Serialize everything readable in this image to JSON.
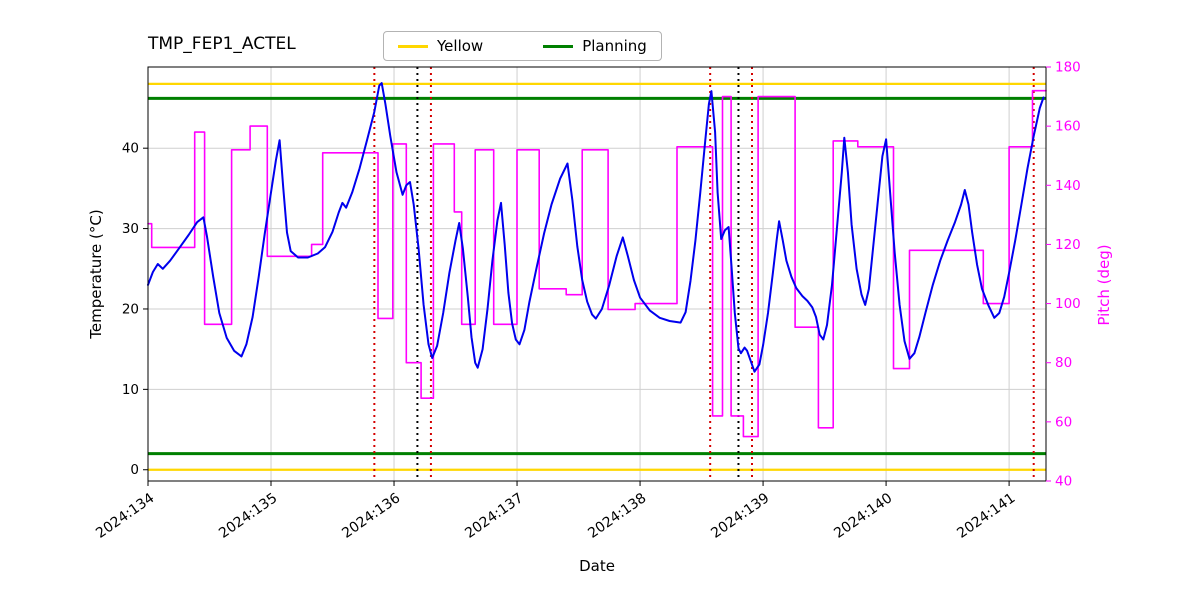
{
  "chart_data": {
    "type": "line",
    "title": "TMP_FEP1_ACTEL",
    "xlabel": "Date",
    "ylabel_left": "Temperature (°C)",
    "ylabel_right": "Pitch (deg)",
    "xlim": [
      134.0,
      141.3
    ],
    "ylim_left": [
      -1.4,
      50.1
    ],
    "ylim_right": [
      40,
      180
    ],
    "grid": true,
    "x_tick_values": [
      134,
      135,
      136,
      137,
      138,
      139,
      140,
      141
    ],
    "x_tick_labels": [
      "2024:134",
      "2024:135",
      "2024:136",
      "2024:137",
      "2024:138",
      "2024:139",
      "2024:140",
      "2024:141"
    ],
    "y_left_ticks": [
      0,
      10,
      20,
      30,
      40
    ],
    "y_right_ticks": [
      40,
      60,
      80,
      100,
      120,
      140,
      160,
      180
    ],
    "legend": {
      "position": "upper-center-outside",
      "entries": [
        {
          "label": "Yellow",
          "color": "#ffd700"
        },
        {
          "label": "Planning",
          "color": "#008000"
        }
      ]
    },
    "colors": {
      "temperature": "#0000ee",
      "pitch": "#ff00ff",
      "yellow_limit": "#ffd700",
      "planning_limit": "#008000",
      "red_event": "#d40000",
      "black_event": "#000000",
      "grid": "#cfcfcf"
    },
    "limit_lines": {
      "yellow": [
        48.0,
        0.0
      ],
      "planning": [
        46.2,
        2.0
      ]
    },
    "event_lines": {
      "red_dotted_x": [
        135.84,
        136.3,
        138.57,
        138.91,
        141.2
      ],
      "black_dotted_x": [
        136.19,
        138.8
      ]
    },
    "series": [
      {
        "name": "Pitch",
        "axis": "right",
        "color": "#ff00ff",
        "style": "step-post",
        "width": 1.6,
        "points": [
          [
            134.0,
            127
          ],
          [
            134.03,
            119
          ],
          [
            134.38,
            158
          ],
          [
            134.46,
            93
          ],
          [
            134.68,
            152
          ],
          [
            134.83,
            160
          ],
          [
            134.97,
            116
          ],
          [
            135.33,
            120
          ],
          [
            135.42,
            151
          ],
          [
            135.87,
            95
          ],
          [
            135.99,
            154
          ],
          [
            136.1,
            80
          ],
          [
            136.22,
            68
          ],
          [
            136.32,
            154
          ],
          [
            136.49,
            131
          ],
          [
            136.55,
            93
          ],
          [
            136.66,
            152
          ],
          [
            136.81,
            93
          ],
          [
            137.0,
            152
          ],
          [
            137.18,
            105
          ],
          [
            137.4,
            103
          ],
          [
            137.53,
            152
          ],
          [
            137.74,
            98
          ],
          [
            137.96,
            100
          ],
          [
            138.3,
            153
          ],
          [
            138.59,
            62
          ],
          [
            138.67,
            170
          ],
          [
            138.74,
            62
          ],
          [
            138.84,
            55
          ],
          [
            138.96,
            170
          ],
          [
            139.26,
            92
          ],
          [
            139.45,
            58
          ],
          [
            139.57,
            155
          ],
          [
            139.77,
            153
          ],
          [
            140.06,
            78
          ],
          [
            140.19,
            118
          ],
          [
            140.79,
            100
          ],
          [
            141.0,
            153
          ],
          [
            141.19,
            172
          ],
          [
            141.29,
            172
          ]
        ]
      },
      {
        "name": "Temperature",
        "axis": "left",
        "color": "#0000ee",
        "style": "line",
        "width": 2,
        "points": [
          [
            134.0,
            23.0
          ],
          [
            134.04,
            24.6
          ],
          [
            134.08,
            25.6
          ],
          [
            134.12,
            25.0
          ],
          [
            134.18,
            26.0
          ],
          [
            134.25,
            27.5
          ],
          [
            134.33,
            29.2
          ],
          [
            134.4,
            30.8
          ],
          [
            134.45,
            31.4
          ],
          [
            134.48,
            29.0
          ],
          [
            134.53,
            24.0
          ],
          [
            134.58,
            19.5
          ],
          [
            134.64,
            16.4
          ],
          [
            134.7,
            14.8
          ],
          [
            134.76,
            14.1
          ],
          [
            134.8,
            15.6
          ],
          [
            134.85,
            19.0
          ],
          [
            134.9,
            24.0
          ],
          [
            134.95,
            29.5
          ],
          [
            135.0,
            34.5
          ],
          [
            135.04,
            38.5
          ],
          [
            135.07,
            41.0
          ],
          [
            135.1,
            35.0
          ],
          [
            135.13,
            29.5
          ],
          [
            135.16,
            27.2
          ],
          [
            135.22,
            26.4
          ],
          [
            135.3,
            26.4
          ],
          [
            135.38,
            26.9
          ],
          [
            135.44,
            27.7
          ],
          [
            135.5,
            29.6
          ],
          [
            135.55,
            32.0
          ],
          [
            135.58,
            33.2
          ],
          [
            135.61,
            32.6
          ],
          [
            135.66,
            34.5
          ],
          [
            135.72,
            37.5
          ],
          [
            135.78,
            41.0
          ],
          [
            135.84,
            44.5
          ],
          [
            135.88,
            47.8
          ],
          [
            135.9,
            48.1
          ],
          [
            135.93,
            45.5
          ],
          [
            135.97,
            41.5
          ],
          [
            136.02,
            37.0
          ],
          [
            136.07,
            34.2
          ],
          [
            136.1,
            35.4
          ],
          [
            136.13,
            35.8
          ],
          [
            136.16,
            33.0
          ],
          [
            136.2,
            27.5
          ],
          [
            136.24,
            20.5
          ],
          [
            136.28,
            15.6
          ],
          [
            136.31,
            13.9
          ],
          [
            136.35,
            15.4
          ],
          [
            136.4,
            19.5
          ],
          [
            136.45,
            24.5
          ],
          [
            136.5,
            28.5
          ],
          [
            136.53,
            30.7
          ],
          [
            136.56,
            27.5
          ],
          [
            136.6,
            21.5
          ],
          [
            136.63,
            16.5
          ],
          [
            136.66,
            13.3
          ],
          [
            136.68,
            12.7
          ],
          [
            136.72,
            15.0
          ],
          [
            136.76,
            20.0
          ],
          [
            136.8,
            26.0
          ],
          [
            136.84,
            31.0
          ],
          [
            136.87,
            33.2
          ],
          [
            136.9,
            28.0
          ],
          [
            136.93,
            22.0
          ],
          [
            136.96,
            18.2
          ],
          [
            136.99,
            16.2
          ],
          [
            137.02,
            15.6
          ],
          [
            137.06,
            17.4
          ],
          [
            137.1,
            20.8
          ],
          [
            137.16,
            25.2
          ],
          [
            137.22,
            29.4
          ],
          [
            137.28,
            33.0
          ],
          [
            137.35,
            36.2
          ],
          [
            137.41,
            38.1
          ],
          [
            137.45,
            33.5
          ],
          [
            137.49,
            27.8
          ],
          [
            137.53,
            23.6
          ],
          [
            137.57,
            20.9
          ],
          [
            137.61,
            19.3
          ],
          [
            137.64,
            18.8
          ],
          [
            137.69,
            20.0
          ],
          [
            137.75,
            23.0
          ],
          [
            137.81,
            26.6
          ],
          [
            137.86,
            28.9
          ],
          [
            137.9,
            26.6
          ],
          [
            137.95,
            23.6
          ],
          [
            138.0,
            21.4
          ],
          [
            138.08,
            19.8
          ],
          [
            138.16,
            18.9
          ],
          [
            138.24,
            18.5
          ],
          [
            138.33,
            18.3
          ],
          [
            138.37,
            19.6
          ],
          [
            138.41,
            23.5
          ],
          [
            138.45,
            28.5
          ],
          [
            138.49,
            34.5
          ],
          [
            138.53,
            41.0
          ],
          [
            138.56,
            45.5
          ],
          [
            138.58,
            47.1
          ],
          [
            138.61,
            42.0
          ],
          [
            138.63,
            34.5
          ],
          [
            138.66,
            28.7
          ],
          [
            138.69,
            29.8
          ],
          [
            138.72,
            30.2
          ],
          [
            138.74,
            26.0
          ],
          [
            138.77,
            19.5
          ],
          [
            138.8,
            15.1
          ],
          [
            138.82,
            14.5
          ],
          [
            138.85,
            15.2
          ],
          [
            138.87,
            14.8
          ],
          [
            138.9,
            13.5
          ],
          [
            138.93,
            12.2
          ],
          [
            138.97,
            13.1
          ],
          [
            139.0,
            15.5
          ],
          [
            139.04,
            19.5
          ],
          [
            139.08,
            24.5
          ],
          [
            139.11,
            28.5
          ],
          [
            139.13,
            30.9
          ],
          [
            139.16,
            28.5
          ],
          [
            139.19,
            26.0
          ],
          [
            139.23,
            24.0
          ],
          [
            139.27,
            22.6
          ],
          [
            139.32,
            21.6
          ],
          [
            139.36,
            21.0
          ],
          [
            139.4,
            20.2
          ],
          [
            139.43,
            19.0
          ],
          [
            139.46,
            16.8
          ],
          [
            139.49,
            16.2
          ],
          [
            139.52,
            18.0
          ],
          [
            139.56,
            23.0
          ],
          [
            139.6,
            30.0
          ],
          [
            139.64,
            37.0
          ],
          [
            139.66,
            41.3
          ],
          [
            139.69,
            37.0
          ],
          [
            139.72,
            30.5
          ],
          [
            139.76,
            25.0
          ],
          [
            139.8,
            21.8
          ],
          [
            139.83,
            20.5
          ],
          [
            139.86,
            22.5
          ],
          [
            139.89,
            27.0
          ],
          [
            139.93,
            33.0
          ],
          [
            139.97,
            39.0
          ],
          [
            140.0,
            41.1
          ],
          [
            140.03,
            35.0
          ],
          [
            140.07,
            27.0
          ],
          [
            140.11,
            20.5
          ],
          [
            140.15,
            16.0
          ],
          [
            140.19,
            13.8
          ],
          [
            140.23,
            14.5
          ],
          [
            140.27,
            16.5
          ],
          [
            140.32,
            19.5
          ],
          [
            140.38,
            23.0
          ],
          [
            140.44,
            26.0
          ],
          [
            140.5,
            28.5
          ],
          [
            140.56,
            30.8
          ],
          [
            140.61,
            33.0
          ],
          [
            140.64,
            34.8
          ],
          [
            140.67,
            33.0
          ],
          [
            140.7,
            29.5
          ],
          [
            140.74,
            25.5
          ],
          [
            140.78,
            22.5
          ],
          [
            140.83,
            20.5
          ],
          [
            140.88,
            18.9
          ],
          [
            140.92,
            19.5
          ],
          [
            140.96,
            21.5
          ],
          [
            141.0,
            24.5
          ],
          [
            141.05,
            28.5
          ],
          [
            141.1,
            33.0
          ],
          [
            141.15,
            37.5
          ],
          [
            141.2,
            41.5
          ],
          [
            141.25,
            45.0
          ],
          [
            141.28,
            46.3
          ]
        ]
      }
    ]
  }
}
